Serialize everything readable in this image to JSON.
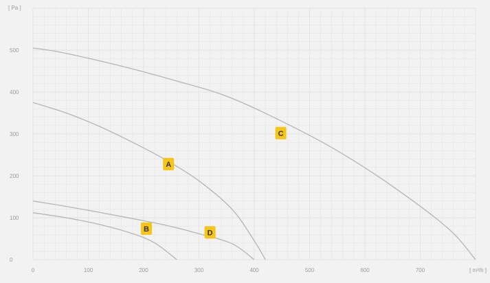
{
  "chart_data": {
    "type": "line",
    "x_unit_label": "[ m³/h ]",
    "y_unit_label": "[ Pa ]",
    "xlim": [
      0,
      800
    ],
    "ylim": [
      0,
      600
    ],
    "x_ticks": [
      0,
      100,
      200,
      300,
      400,
      500,
      600,
      700
    ],
    "x_tick_labels": [
      "0",
      "100",
      "200",
      "300",
      "400",
      "500",
      "600",
      "700"
    ],
    "y_ticks": [
      0,
      100,
      200,
      300,
      400,
      500
    ],
    "y_tick_labels": [
      "0",
      "100",
      "200",
      "300",
      "400",
      "500"
    ],
    "grid": true,
    "colors": {
      "background": "#f2f2f2",
      "grid": "#e2e2e2",
      "curve": "#b5b5b5",
      "label_badge": "#f5c518"
    },
    "series": [
      {
        "name": "C",
        "x": [
          0,
          50,
          150,
          250,
          350,
          450,
          550,
          650,
          750,
          800
        ],
        "y": [
          505,
          495,
          465,
          430,
          390,
          330,
          260,
          175,
          75,
          0
        ],
        "label_at": [
          448,
          302
        ]
      },
      {
        "name": "A",
        "x": [
          0,
          60,
          120,
          180,
          240,
          300,
          360,
          400,
          420
        ],
        "y": [
          375,
          350,
          318,
          280,
          238,
          188,
          120,
          45,
          0
        ],
        "label_at": [
          245,
          228
        ]
      },
      {
        "name": "D",
        "x": [
          0,
          60,
          120,
          180,
          240,
          300,
          360,
          400
        ],
        "y": [
          140,
          127,
          113,
          98,
          82,
          62,
          38,
          0
        ],
        "label_at": [
          320,
          65
        ]
      },
      {
        "name": "B",
        "x": [
          0,
          60,
          120,
          180,
          220,
          260
        ],
        "y": [
          112,
          100,
          84,
          62,
          40,
          0
        ],
        "label_at": [
          205,
          74
        ]
      }
    ]
  }
}
